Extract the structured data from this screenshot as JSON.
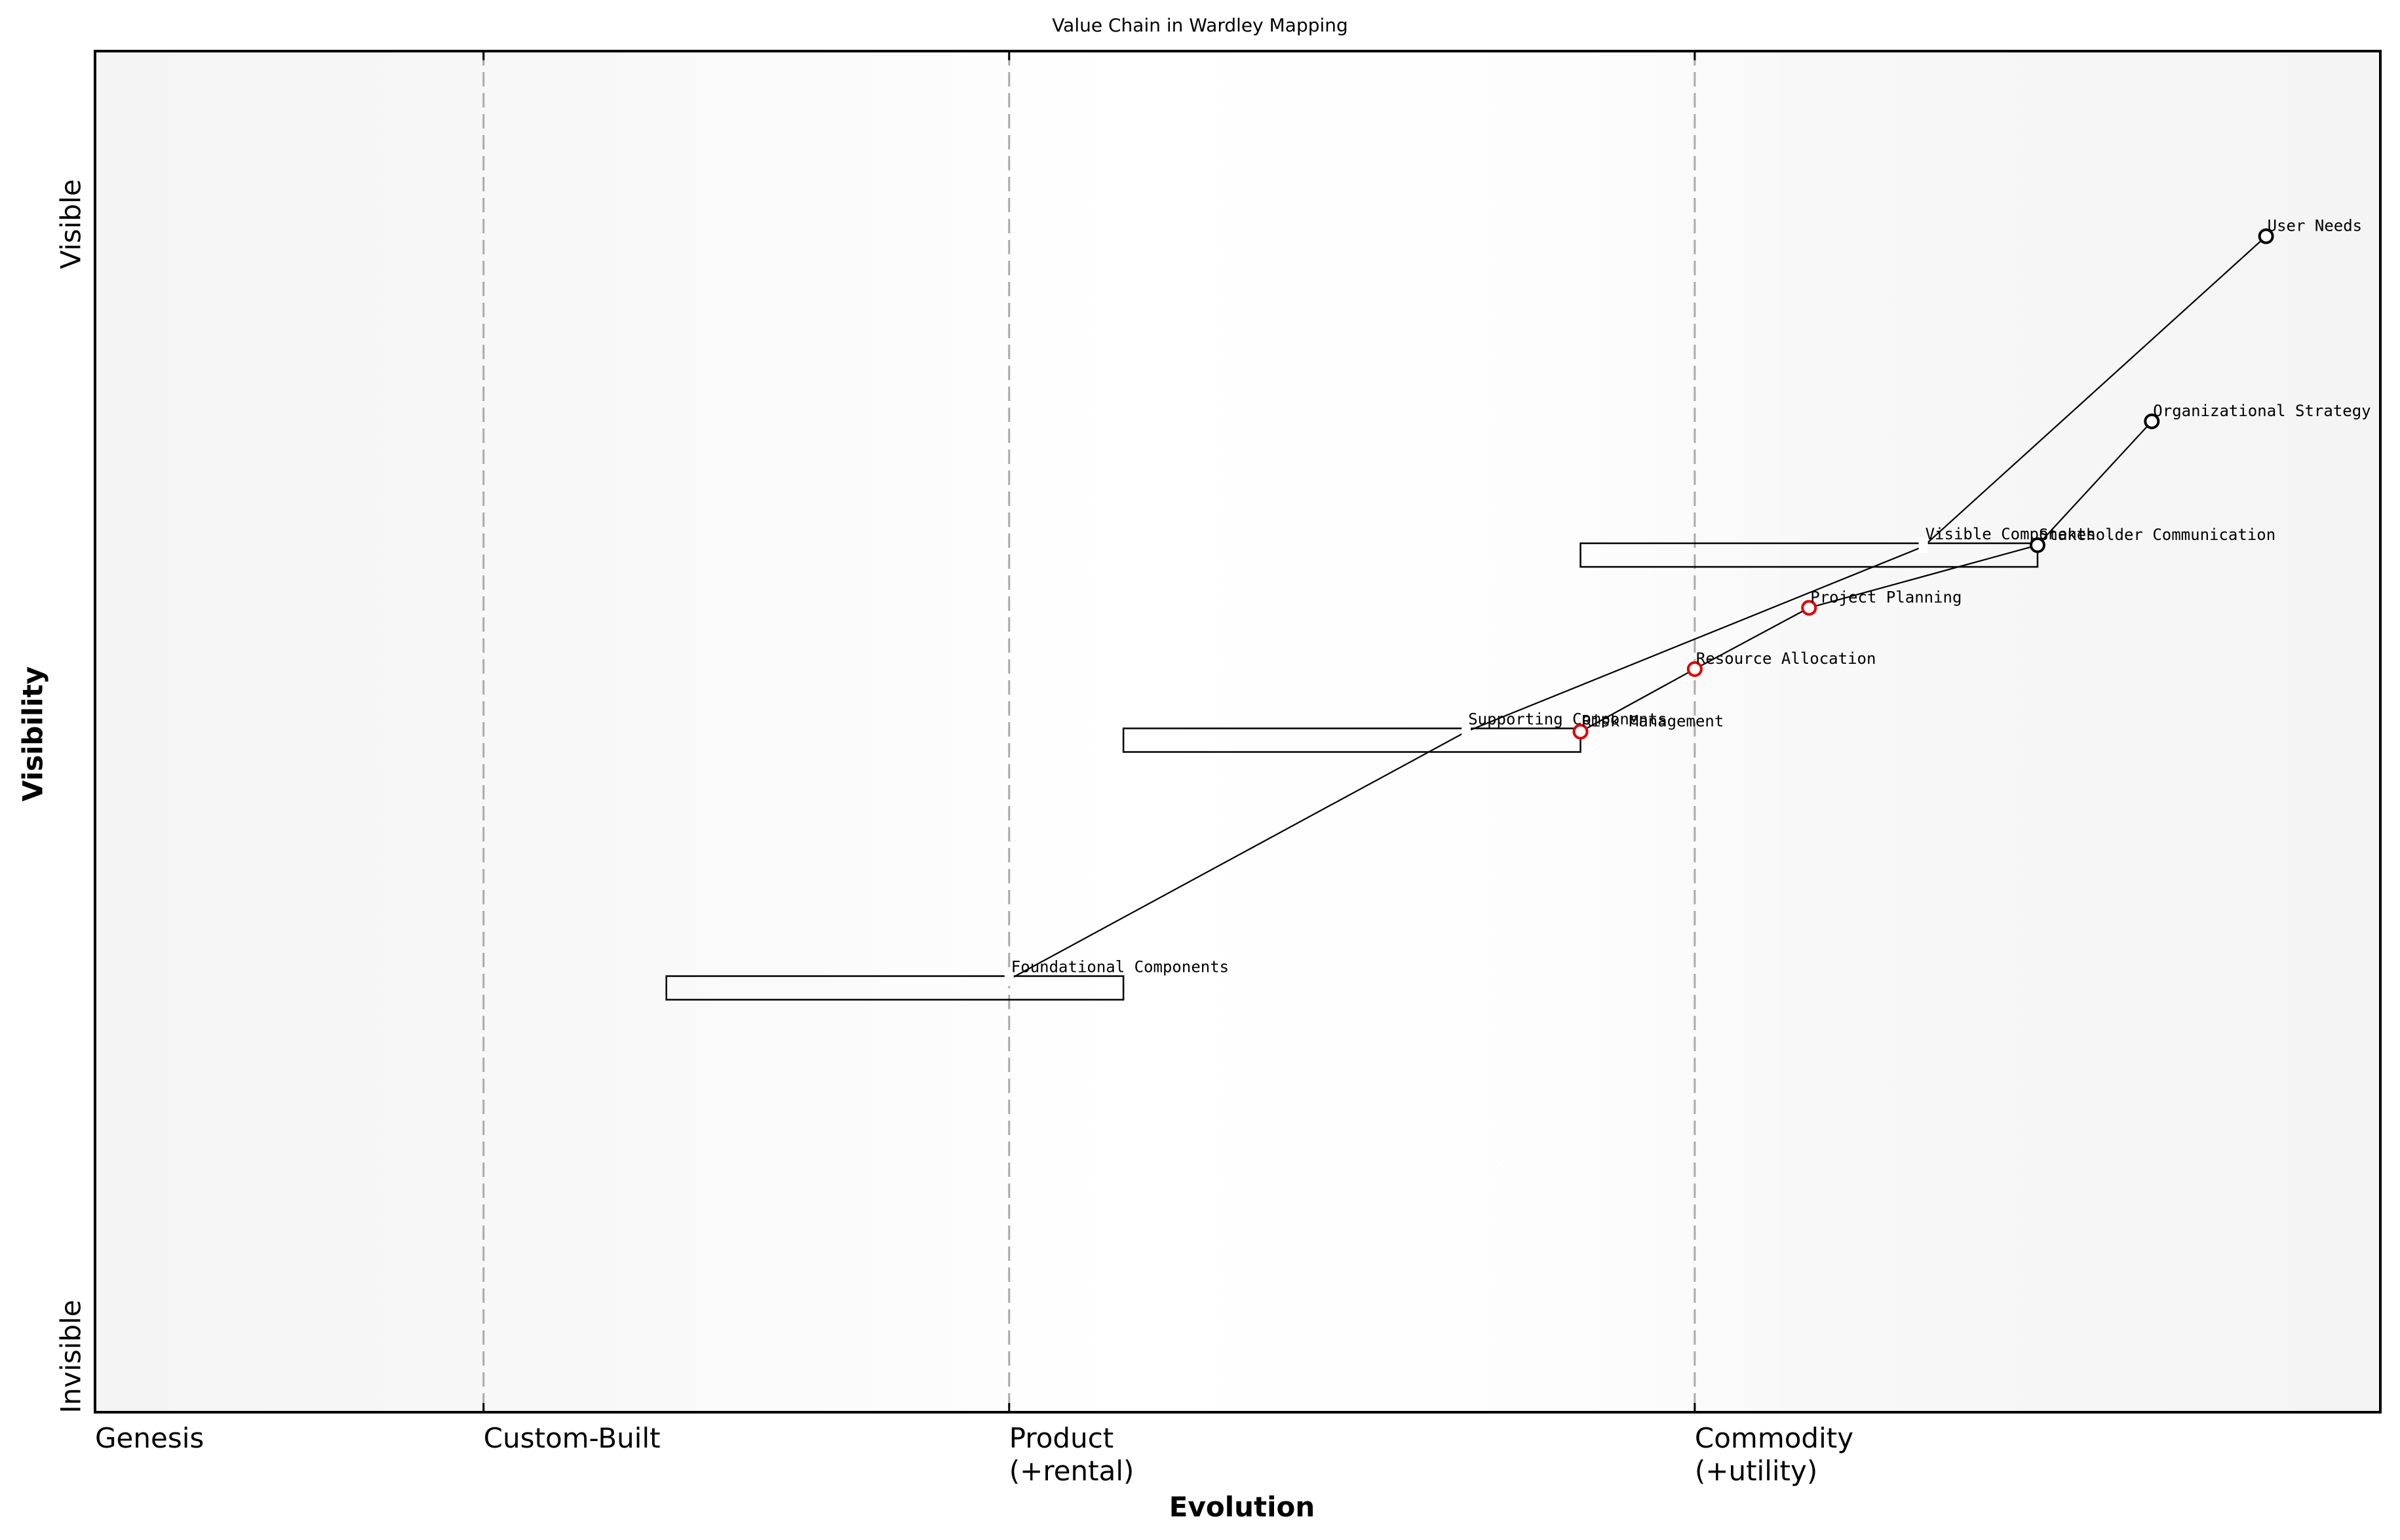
{
  "title": "Value Chain in Wardley Mapping",
  "axes": {
    "xlabel": "Evolution",
    "ylabel": "Visibility",
    "xticks": [
      {
        "label": "Genesis",
        "x": 0.0
      },
      {
        "label": "Custom-Built",
        "x": 0.17
      },
      {
        "label": "Product\n(+rental)",
        "x": 0.4
      },
      {
        "label": "Commodity\n(+utility)",
        "x": 0.7
      }
    ],
    "yticks": [
      {
        "label": "Visible",
        "y": 0.87
      },
      {
        "label": "Invisible",
        "y": 0.0
      }
    ]
  },
  "chart_data": {
    "type": "scatter",
    "title": "Value Chain in Wardley Mapping",
    "xlabel": "Evolution",
    "ylabel": "Visibility",
    "xlim": [
      0,
      1
    ],
    "ylim": [
      0,
      1
    ],
    "grid": false,
    "stage_boundaries": [
      0.17,
      0.4,
      0.7
    ],
    "stage_labels": [
      "Genesis",
      "Custom-Built",
      "Product (+rental)",
      "Commodity (+utility)"
    ],
    "components": [
      {
        "name": "User Needs",
        "x": 0.95,
        "y": 0.864,
        "color": "#000000"
      },
      {
        "name": "Organizational Strategy",
        "x": 0.9,
        "y": 0.728,
        "color": "#000000"
      },
      {
        "name": "Stakeholder Communication",
        "x": 0.85,
        "y": 0.637,
        "color": "#000000"
      },
      {
        "name": "Project Planning",
        "x": 0.75,
        "y": 0.591,
        "color": "#e00000"
      },
      {
        "name": "Resource Allocation",
        "x": 0.7,
        "y": 0.546,
        "color": "#e00000"
      },
      {
        "name": "Risk Management",
        "x": 0.65,
        "y": 0.5,
        "color": "#e00000"
      }
    ],
    "groups": [
      {
        "name": "Visible Components",
        "x": 0.8,
        "y": 0.636,
        "range_x": [
          0.65,
          0.85
        ]
      },
      {
        "name": "Supporting Components",
        "x": 0.6,
        "y": 0.5,
        "range_x": [
          0.45,
          0.65
        ]
      },
      {
        "name": "Foundational Components",
        "x": 0.4,
        "y": 0.318,
        "range_x": [
          0.25,
          0.45
        ]
      }
    ],
    "links": [
      [
        "User Needs",
        "Visible Components"
      ],
      [
        "Visible Components",
        "Supporting Components"
      ],
      [
        "Supporting Components",
        "Foundational Components"
      ],
      [
        "Organizational Strategy",
        "Stakeholder Communication"
      ],
      [
        "Stakeholder Communication",
        "Project Planning"
      ],
      [
        "Project Planning",
        "Resource Allocation"
      ],
      [
        "Resource Allocation",
        "Risk Management"
      ]
    ]
  }
}
